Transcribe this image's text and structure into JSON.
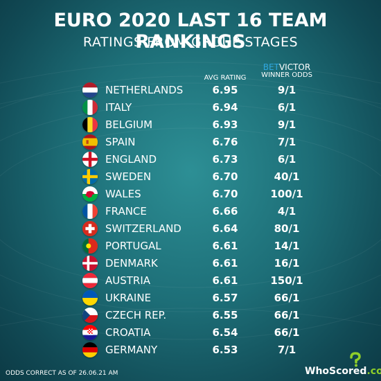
{
  "title": "EURO 2020 LAST 16 TEAM RANKINGS",
  "subtitle": "RATINGS FROM GROUP STAGES",
  "columns": {
    "rating_label": "AVG RATING",
    "odds_brand_bet": "BET",
    "odds_brand_victor": "VICTOR",
    "odds_label": "WINNER ODDS"
  },
  "teams": [
    {
      "name": "NETHERLANDS",
      "rating": "6.95",
      "odds": "9/1",
      "flag": "netherlands-flag-icon"
    },
    {
      "name": "ITALY",
      "rating": "6.94",
      "odds": "6/1",
      "flag": "italy-flag-icon"
    },
    {
      "name": "BELGIUM",
      "rating": "6.93",
      "odds": "9/1",
      "flag": "belgium-flag-icon"
    },
    {
      "name": "SPAIN",
      "rating": "6.76",
      "odds": "7/1",
      "flag": "spain-flag-icon"
    },
    {
      "name": "ENGLAND",
      "rating": "6.73",
      "odds": "6/1",
      "flag": "england-flag-icon"
    },
    {
      "name": "SWEDEN",
      "rating": "6.70",
      "odds": "40/1",
      "flag": "sweden-flag-icon"
    },
    {
      "name": "WALES",
      "rating": "6.70",
      "odds": "100/1",
      "flag": "wales-flag-icon"
    },
    {
      "name": "FRANCE",
      "rating": "6.66",
      "odds": "4/1",
      "flag": "france-flag-icon"
    },
    {
      "name": "SWITZERLAND",
      "rating": "6.64",
      "odds": "80/1",
      "flag": "switzerland-flag-icon"
    },
    {
      "name": "PORTUGAL",
      "rating": "6.61",
      "odds": "14/1",
      "flag": "portugal-flag-icon"
    },
    {
      "name": "DENMARK",
      "rating": "6.61",
      "odds": "16/1",
      "flag": "denmark-flag-icon"
    },
    {
      "name": "AUSTRIA",
      "rating": "6.61",
      "odds": "150/1",
      "flag": "austria-flag-icon"
    },
    {
      "name": "UKRAINE",
      "rating": "6.57",
      "odds": "66/1",
      "flag": "ukraine-flag-icon"
    },
    {
      "name": "CZECH REP.",
      "rating": "6.55",
      "odds": "66/1",
      "flag": "czech-flag-icon"
    },
    {
      "name": "CROATIA",
      "rating": "6.54",
      "odds": "66/1",
      "flag": "croatia-flag-icon"
    },
    {
      "name": "GERMANY",
      "rating": "6.53",
      "odds": "7/1",
      "flag": "germany-flag-icon"
    }
  ],
  "footnote": "ODDS CORRECT AS OF 26.06.21 AM",
  "logo": {
    "main": "WhoScored",
    "dot": ".",
    "suffix": "com"
  },
  "colors": {
    "background": "#1d6e77",
    "bet_blue": "#2fa7df",
    "logo_green": "#8fce2a"
  }
}
